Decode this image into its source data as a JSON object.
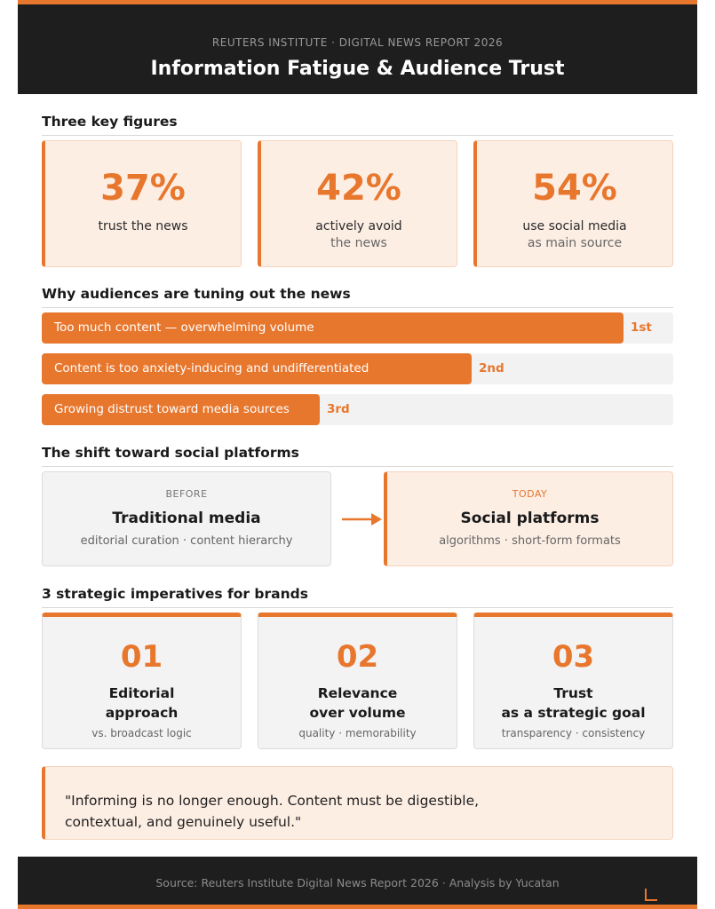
{
  "header": {
    "kicker": "REUTERS INSTITUTE · DIGITAL NEWS REPORT 2026",
    "title": "Information Fatigue & Audience Trust"
  },
  "key_figures": {
    "title": "Three key figures",
    "cards": [
      {
        "value": "37%",
        "line1": "trust the news",
        "line2": ""
      },
      {
        "value": "42%",
        "line1": "actively avoid",
        "line2": "the news"
      },
      {
        "value": "54%",
        "line1": "use social media",
        "line2": "as main source"
      }
    ]
  },
  "reasons": {
    "title": "Why audiences are tuning out the news",
    "items": [
      {
        "text": "Too much content — overwhelming volume",
        "rank": "1st"
      },
      {
        "text": "Content is too anxiety-inducing and undifferentiated",
        "rank": "2nd"
      },
      {
        "text": "Growing distrust toward media sources",
        "rank": "3rd"
      }
    ]
  },
  "shift": {
    "title": "The shift toward social platforms",
    "before": {
      "tag": "BEFORE",
      "head": "Traditional media",
      "sub": "editorial curation · content hierarchy"
    },
    "today": {
      "tag": "TODAY",
      "head": "Social platforms",
      "sub": "algorithms · short-form formats"
    }
  },
  "imperatives": {
    "title": "3 strategic imperatives for brands",
    "items": [
      {
        "num": "01",
        "line1": "Editorial",
        "line2": "approach",
        "sub": "vs. broadcast logic"
      },
      {
        "num": "02",
        "line1": "Relevance",
        "line2": "over volume",
        "sub": "quality · memorability"
      },
      {
        "num": "03",
        "line1": "Trust",
        "line2": "as a strategic goal",
        "sub": "transparency · consistency"
      }
    ]
  },
  "quote": {
    "line1": "\"Informing is no longer enough. Content must be digestible,",
    "line2": "contextual, and genuinely useful.\""
  },
  "footer": {
    "source": "Source: Reuters Institute Digital News Report 2026 · Analysis by Yucatan"
  },
  "colors": {
    "accent": "#e8772e",
    "dark": "#1e1e1e",
    "tint": "#fdeee4"
  }
}
